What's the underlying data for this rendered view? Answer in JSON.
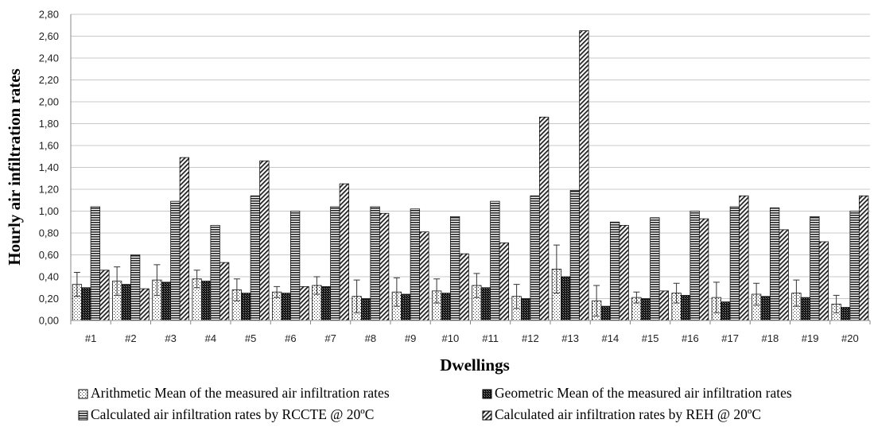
{
  "chart_data": {
    "type": "bar",
    "xlabel": "Dwellings",
    "ylabel": "Hourly air infiltration rates",
    "ylim": [
      0,
      2.8
    ],
    "yticks": [
      "0,00",
      "0,20",
      "0,40",
      "0,60",
      "0,80",
      "1,00",
      "1,20",
      "1,40",
      "1,60",
      "1,80",
      "2,00",
      "2,20",
      "2,40",
      "2,60",
      "2,80"
    ],
    "categories": [
      "#1",
      "#2",
      "#3",
      "#4",
      "#5",
      "#6",
      "#7",
      "#8",
      "#9",
      "#10",
      "#11",
      "#12",
      "#13",
      "#14",
      "#15",
      "#16",
      "#17",
      "#18",
      "#19",
      "#20"
    ],
    "grid": "horizontal",
    "legend_position": "bottom",
    "series": [
      {
        "name": "Arithmetic Mean of the measured air infiltration rates",
        "pattern": "dots",
        "values": [
          0.33,
          0.36,
          0.37,
          0.38,
          0.28,
          0.26,
          0.32,
          0.22,
          0.26,
          0.27,
          0.32,
          0.22,
          0.47,
          0.18,
          0.21,
          0.25,
          0.21,
          0.24,
          0.25,
          0.15
        ],
        "error": [
          0.11,
          0.13,
          0.14,
          0.08,
          0.1,
          0.05,
          0.08,
          0.15,
          0.13,
          0.11,
          0.11,
          0.11,
          0.22,
          0.14,
          0.05,
          0.09,
          0.14,
          0.1,
          0.12,
          0.08
        ]
      },
      {
        "name": "Geometric Mean of the measured air infiltration rates",
        "pattern": "checker",
        "values": [
          0.3,
          0.33,
          0.35,
          0.36,
          0.25,
          0.25,
          0.31,
          0.2,
          0.24,
          0.25,
          0.3,
          0.2,
          0.4,
          0.13,
          0.2,
          0.23,
          0.17,
          0.22,
          0.21,
          0.12
        ]
      },
      {
        "name": "Calculated air infiltration rates by RCCTE @ 20ºC",
        "pattern": "horizontal-lines",
        "values": [
          1.04,
          0.6,
          1.09,
          0.87,
          1.14,
          1.0,
          1.04,
          1.04,
          1.02,
          0.95,
          1.09,
          1.14,
          1.19,
          0.9,
          0.94,
          1.0,
          1.04,
          1.03,
          0.95,
          1.0
        ]
      },
      {
        "name": "Calculated air infiltration rates by REH @ 20ºC",
        "pattern": "diagonal-lines",
        "values": [
          0.46,
          0.29,
          1.49,
          0.53,
          1.46,
          0.31,
          1.25,
          0.98,
          0.81,
          0.61,
          0.71,
          1.86,
          2.65,
          0.87,
          0.27,
          0.93,
          1.14,
          0.83,
          0.72,
          1.14
        ]
      }
    ]
  }
}
